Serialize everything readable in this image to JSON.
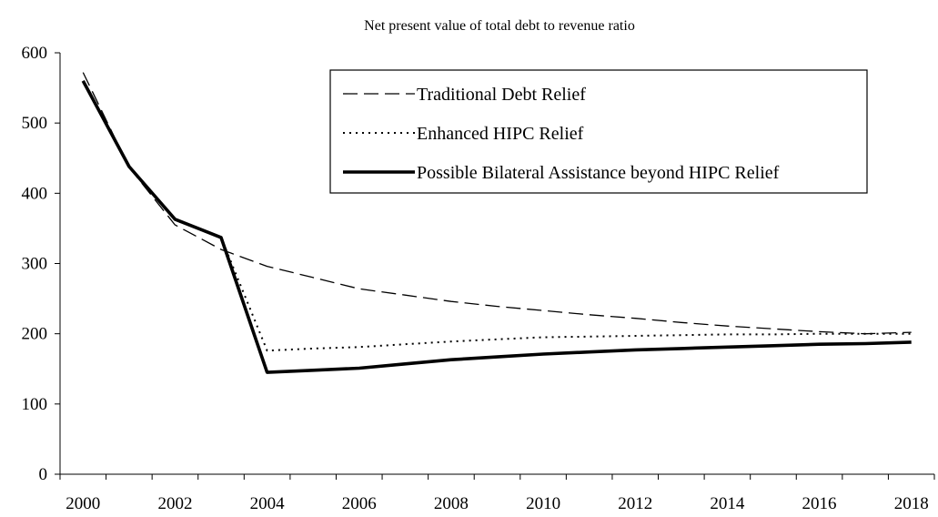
{
  "chart_data": {
    "type": "line",
    "title": "Net present value of total debt to revenue ratio",
    "xlabel": "",
    "ylabel": "",
    "xlim": [
      2000,
      2018
    ],
    "ylim": [
      0,
      600
    ],
    "x_ticks": [
      "2000",
      "2002",
      "2004",
      "2006",
      "2008",
      "2010",
      "2012",
      "2014",
      "2016",
      "2018"
    ],
    "y_ticks": [
      "0",
      "100",
      "200",
      "300",
      "400",
      "500",
      "600"
    ],
    "grid": false,
    "legend_position": "top-right",
    "x": [
      2000,
      2001,
      2002,
      2003,
      2004,
      2005,
      2006,
      2007,
      2008,
      2009,
      2010,
      2011,
      2012,
      2013,
      2014,
      2015,
      2016,
      2017,
      2018
    ],
    "series": [
      {
        "name": "Traditional Debt Relief",
        "style": "dashed",
        "color": "#000000",
        "values": [
          572,
          437,
          355,
          320,
          296,
          280,
          264,
          255,
          246,
          239,
          233,
          227,
          222,
          216,
          211,
          207,
          203,
          200,
          202
        ]
      },
      {
        "name": "Enhanced HIPC Relief",
        "style": "dotted",
        "color": "#000000",
        "values": [
          560,
          437,
          362,
          337,
          176,
          179,
          181,
          185,
          189,
          192,
          195,
          196,
          197,
          198,
          199,
          199,
          200,
          200,
          200
        ]
      },
      {
        "name": "Possible Bilateral Assistance beyond HIPC Relief",
        "style": "solid",
        "color": "#000000",
        "values": [
          560,
          438,
          363,
          337,
          145,
          148,
          151,
          157,
          163,
          167,
          171,
          174,
          177,
          179,
          181,
          183,
          185,
          186,
          188
        ]
      }
    ]
  }
}
